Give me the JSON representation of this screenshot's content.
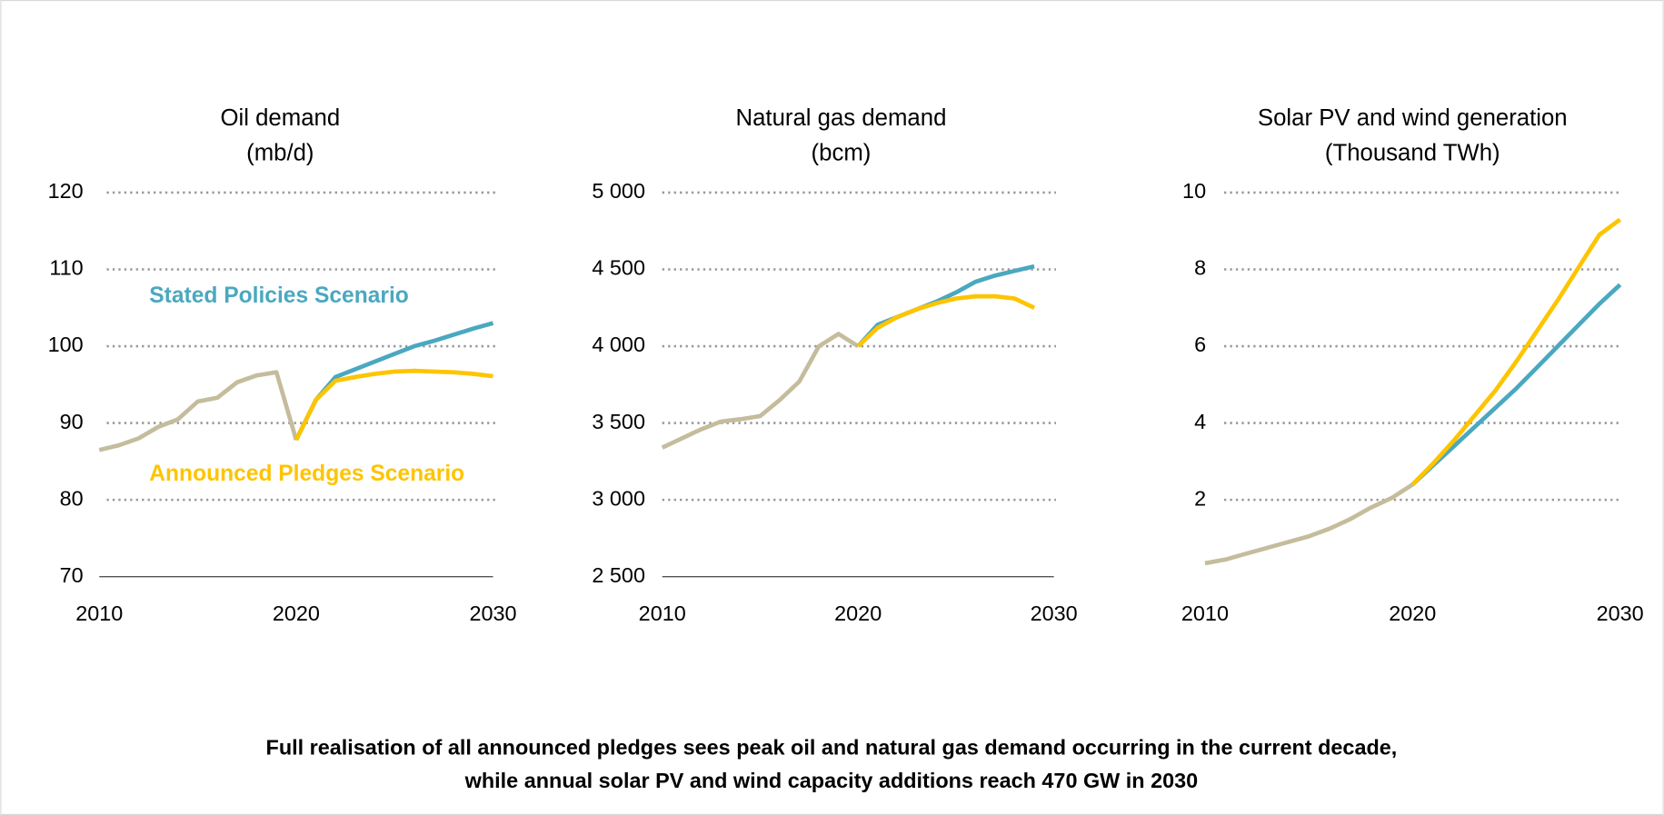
{
  "chart_data": [
    {
      "type": "line",
      "title": "Oil demand",
      "units": "(mb/d)",
      "x": [
        2010,
        2011,
        2012,
        2013,
        2014,
        2015,
        2016,
        2017,
        2018,
        2019,
        2020,
        2021,
        2022,
        2023,
        2024,
        2025,
        2026,
        2027,
        2028,
        2029,
        2030
      ],
      "xlim": [
        2010,
        2030
      ],
      "xticks": [
        2010,
        2020,
        2030
      ],
      "ylim": [
        70,
        120
      ],
      "yticks": [
        70,
        80,
        90,
        100,
        110,
        120
      ],
      "grid": true,
      "axis_line": true,
      "series": [
        {
          "color": "#c4bc9c",
          "values": [
            86.5,
            87.1,
            88,
            89.5,
            90.5,
            92.8,
            93.3,
            95.3,
            96.2,
            96.6,
            87.8,
            null,
            null,
            null,
            null,
            null,
            null,
            null,
            null,
            null,
            null
          ]
        },
        {
          "name": "Stated Policies Scenario",
          "color": "#4aa8c0",
          "values": [
            null,
            null,
            null,
            null,
            null,
            null,
            null,
            null,
            null,
            null,
            87.8,
            93,
            96,
            97,
            98,
            99,
            100,
            100.7,
            101.5,
            102.3,
            103
          ]
        },
        {
          "name": "Announced Pledges Scenario",
          "color": "#fdc400",
          "values": [
            null,
            null,
            null,
            null,
            null,
            null,
            null,
            null,
            null,
            null,
            87.8,
            93,
            95.5,
            96,
            96.4,
            96.7,
            96.8,
            96.7,
            96.6,
            96.4,
            96.1
          ]
        }
      ]
    },
    {
      "type": "line",
      "title": "Natural gas demand",
      "units": "(bcm)",
      "x": [
        2010,
        2011,
        2012,
        2013,
        2014,
        2015,
        2016,
        2017,
        2018,
        2019,
        2020,
        2021,
        2022,
        2023,
        2024,
        2025,
        2026,
        2027,
        2028,
        2029,
        2030
      ],
      "xlim": [
        2010,
        2030
      ],
      "xticks": [
        2010,
        2020,
        2030
      ],
      "ylim": [
        2500,
        5000
      ],
      "yticks": [
        {
          "value": 2500,
          "label": "2 500"
        },
        {
          "value": 3000,
          "label": "3 000"
        },
        {
          "value": 3500,
          "label": "3 500"
        },
        {
          "value": 4000,
          "label": "4 000"
        },
        {
          "value": 4500,
          "label": "4 500"
        },
        {
          "value": 5000,
          "label": "5 000"
        }
      ],
      "grid": true,
      "axis_line": true,
      "series": [
        {
          "color": "#c4bc9c",
          "values": [
            3340,
            3400,
            3460,
            3510,
            3525,
            3545,
            3650,
            3770,
            4000,
            4080,
            4000,
            null,
            null,
            null,
            null,
            null,
            null,
            null,
            null,
            null,
            null
          ]
        },
        {
          "color": "#4aa8c0",
          "values": [
            null,
            null,
            null,
            null,
            null,
            null,
            null,
            null,
            null,
            null,
            4000,
            4140,
            4190,
            4240,
            4290,
            4350,
            4420,
            4460,
            4490,
            4520,
            null
          ]
        },
        {
          "color": "#fdc400",
          "values": [
            null,
            null,
            null,
            null,
            null,
            null,
            null,
            null,
            null,
            null,
            4000,
            4120,
            4190,
            4240,
            4280,
            4310,
            4325,
            4325,
            4310,
            4250,
            null
          ]
        }
      ]
    },
    {
      "type": "line",
      "title": "Solar PV and wind generation",
      "units": "(Thousand TWh)",
      "x": [
        2010,
        2011,
        2012,
        2013,
        2014,
        2015,
        2016,
        2017,
        2018,
        2019,
        2020,
        2021,
        2022,
        2023,
        2024,
        2025,
        2026,
        2027,
        2028,
        2029,
        2030
      ],
      "xlim": [
        2010,
        2030
      ],
      "xticks": [
        2010,
        2020,
        2030
      ],
      "ylim": [
        0,
        10
      ],
      "yticks": [
        2,
        4,
        6,
        8,
        10
      ],
      "grid": true,
      "axis_line": false,
      "series": [
        {
          "color": "#c4bc9c",
          "values": [
            0.35,
            0.45,
            0.6,
            0.75,
            0.9,
            1.05,
            1.25,
            1.5,
            1.8,
            2.05,
            2.4,
            null,
            null,
            null,
            null,
            null,
            null,
            null,
            null,
            null,
            null
          ]
        },
        {
          "color": "#4aa8c0",
          "values": [
            null,
            null,
            null,
            null,
            null,
            null,
            null,
            null,
            null,
            null,
            2.4,
            2.9,
            3.4,
            3.9,
            4.4,
            4.9,
            5.45,
            6.0,
            6.55,
            7.1,
            7.6
          ]
        },
        {
          "color": "#fdc400",
          "values": [
            null,
            null,
            null,
            null,
            null,
            null,
            null,
            null,
            null,
            null,
            2.4,
            2.95,
            3.55,
            4.2,
            4.85,
            5.6,
            6.4,
            7.2,
            8.05,
            8.9,
            9.3
          ]
        }
      ]
    }
  ],
  "caption": [
    "Full realisation of all announced pledges sees peak oil and natural gas demand occurring in the current decade,",
    "while annual solar PV and wind capacity additions reach 470 GW in 2030"
  ]
}
